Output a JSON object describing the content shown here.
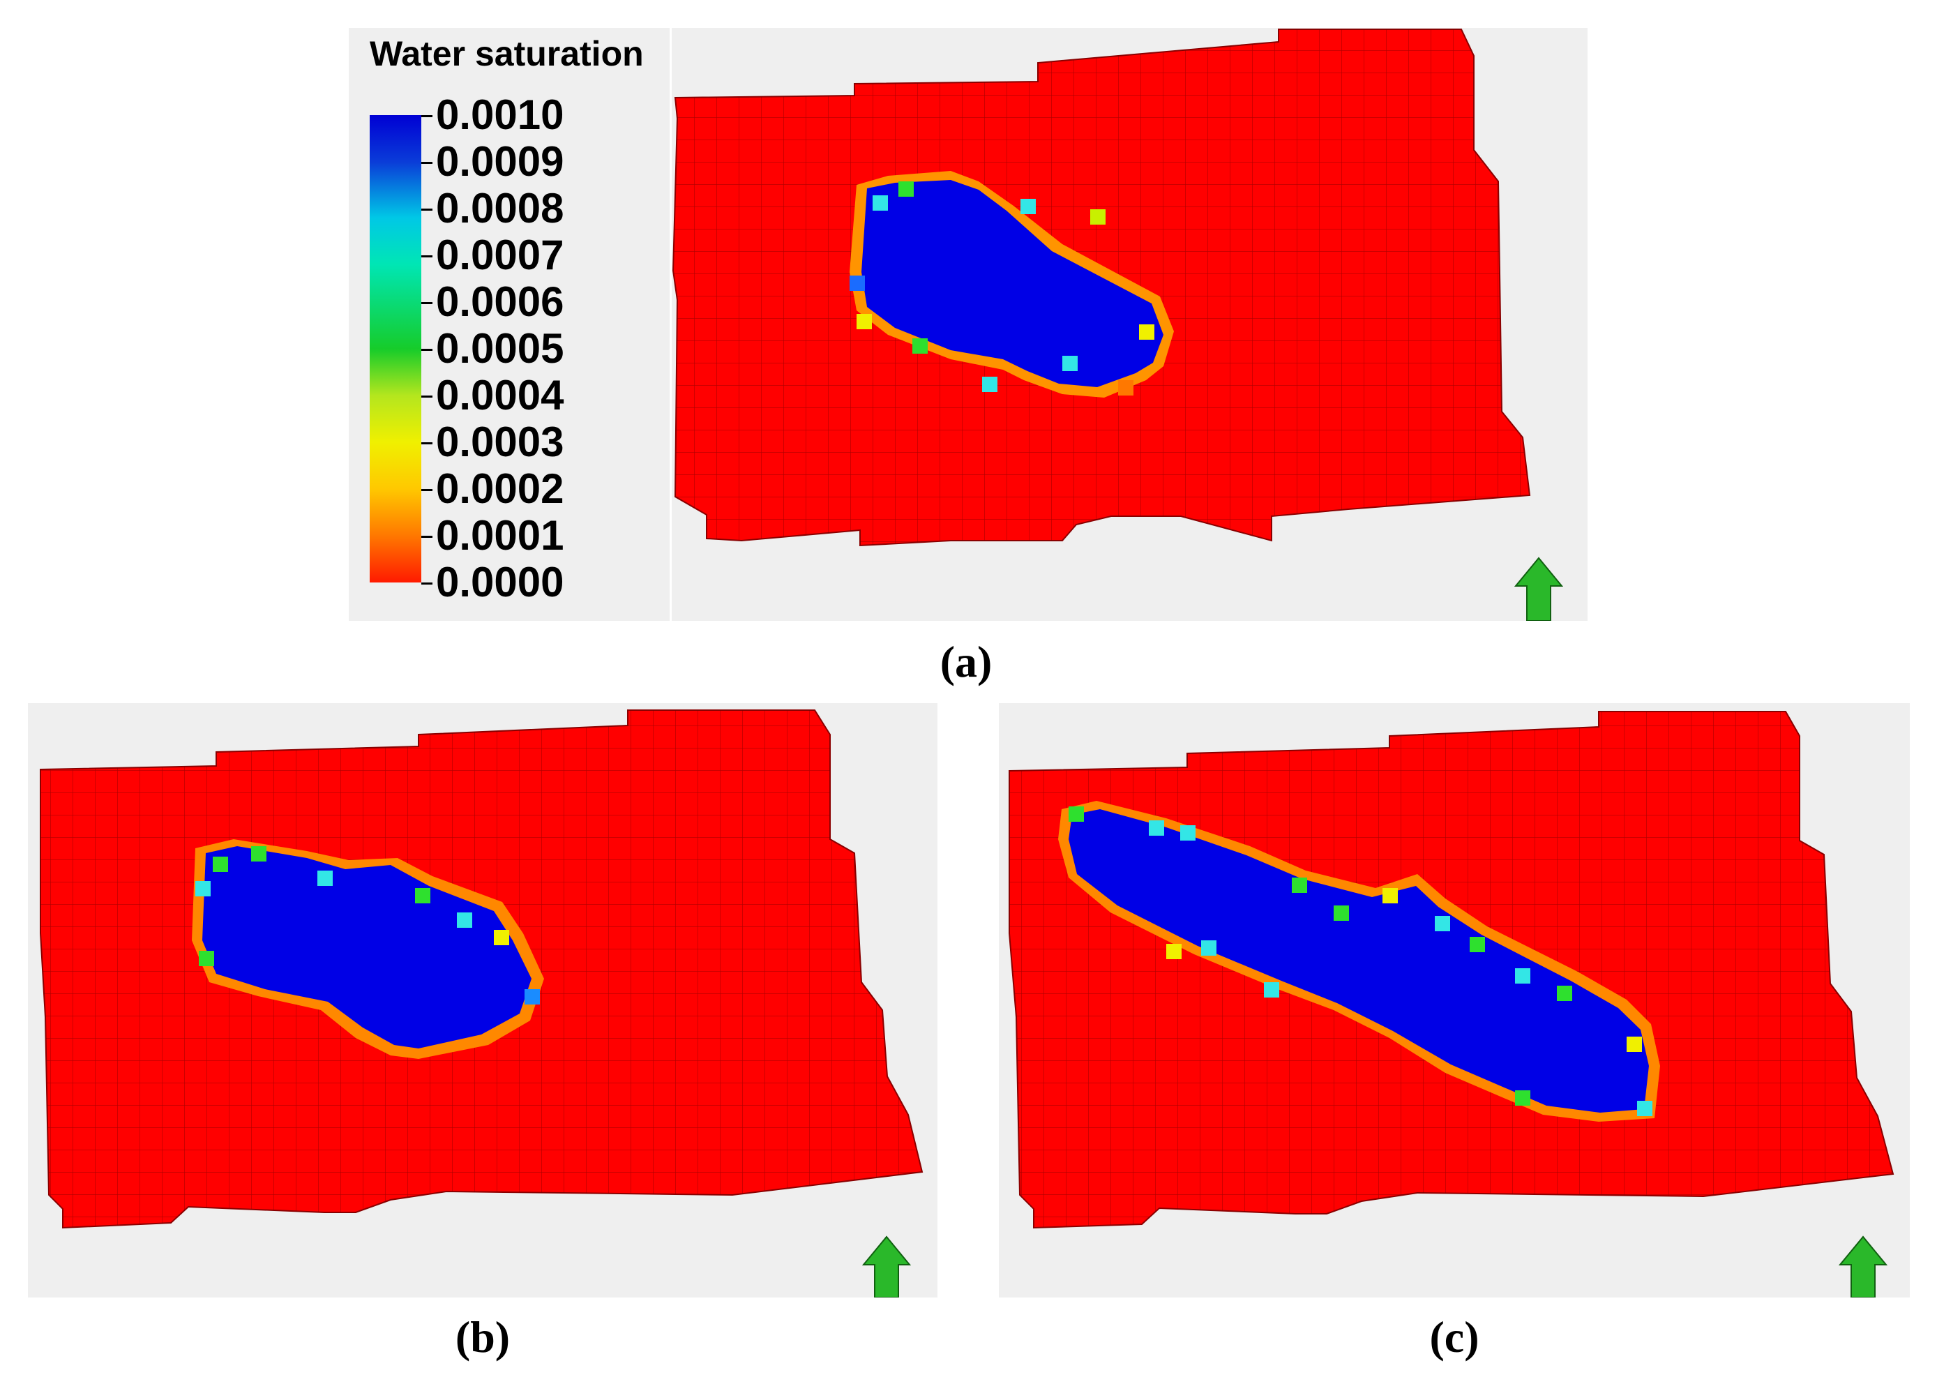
{
  "legend": {
    "title": "Water saturation",
    "ticks": [
      "0.0010",
      "0.0009",
      "0.0008",
      "0.0007",
      "0.0006",
      "0.0005",
      "0.0004",
      "0.0003",
      "0.0002",
      "0.0001",
      "0.0000"
    ]
  },
  "captions": {
    "a": "(a)",
    "b": "(b)",
    "c": "(c)"
  },
  "colors": {
    "background_field": "#ff0000",
    "water_plume": "#0000e6",
    "panel_bg": "#efefef",
    "north_arrow": "#2ab82a"
  }
}
